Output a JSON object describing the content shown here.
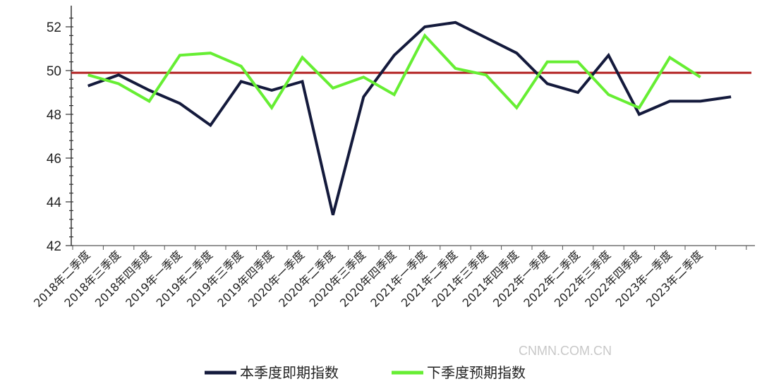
{
  "chart_data": {
    "type": "line",
    "title": "",
    "xlabel": "",
    "ylabel": "",
    "ylim": [
      42,
      52
    ],
    "yticks": [
      42,
      44,
      46,
      48,
      50,
      52
    ],
    "grid": false,
    "legend_placement": "bottom",
    "categories": [
      "2018年二季度",
      "2018年三季度",
      "2018年四季度",
      "2019年一季度",
      "2019年二季度",
      "2019年三季度",
      "2019年四季度",
      "2020年一季度",
      "2020年二季度",
      "2020年三季度",
      "2020年四季度",
      "2021年一季度",
      "2021年二季度",
      "2021年三季度",
      "2021年四季度",
      "2022年一季度",
      "2022年二季度",
      "2022年三季度",
      "2022年四季度",
      "2023年一季度",
      "2023年二季度",
      ""
    ],
    "series": [
      {
        "name": "本季度即期指数",
        "color": "#141a3c",
        "values": [
          49.3,
          49.8,
          49.1,
          48.5,
          47.5,
          49.5,
          49.1,
          49.5,
          43.4,
          48.8,
          50.7,
          52.0,
          52.2,
          51.5,
          50.8,
          49.4,
          49.0,
          50.7,
          48.0,
          48.6,
          48.6,
          48.8
        ]
      },
      {
        "name": "下季度预期指数",
        "color": "#66ee33",
        "values": [
          49.8,
          49.4,
          48.6,
          50.7,
          50.8,
          50.2,
          48.3,
          50.6,
          49.2,
          49.7,
          48.9,
          51.6,
          50.1,
          49.8,
          48.3,
          50.4,
          50.4,
          48.9,
          48.3,
          50.6,
          49.7,
          null
        ]
      }
    ],
    "reference_line": {
      "value": 49.9,
      "color": "#b22222"
    },
    "watermark": "CNMN.COM.CN"
  }
}
